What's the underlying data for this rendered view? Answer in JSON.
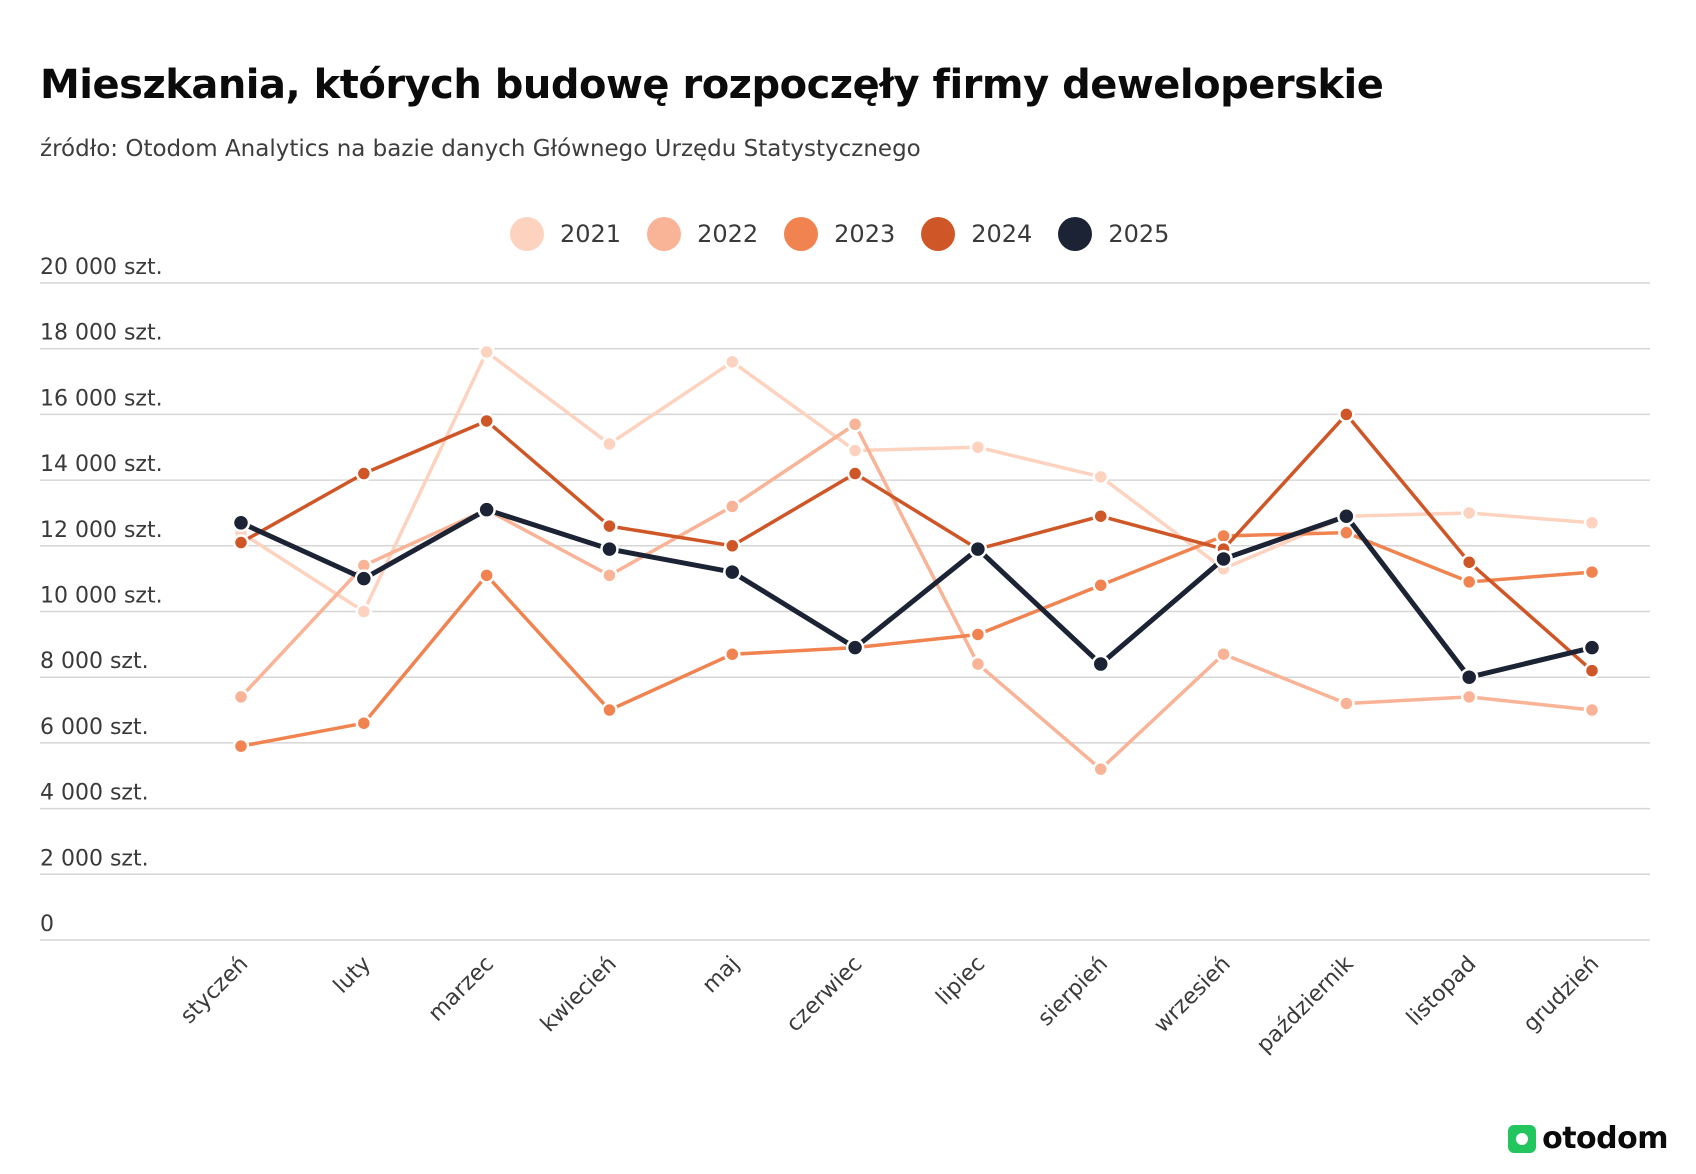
{
  "header": {
    "title": "Mieszkania, których budowę rozpoczęły firmy deweloperskie",
    "subtitle": "źródło: Otodom Analytics na bazie danych Głównego Urzędu Statystycznego"
  },
  "logo": {
    "text": "otodom",
    "icon": "otodom-logo-icon",
    "color": "#22c55e"
  },
  "chart_data": {
    "type": "line",
    "title": "Mieszkania, których budowę rozpoczęły firmy deweloperskie",
    "xlabel": "",
    "ylabel": "",
    "ylim": [
      0,
      20000
    ],
    "grid": true,
    "legend_position": "top-center",
    "y_ticks": [
      {
        "value": 0,
        "label": "0"
      },
      {
        "value": 2000,
        "label": "2 000 szt."
      },
      {
        "value": 4000,
        "label": "4 000 szt."
      },
      {
        "value": 6000,
        "label": "6 000 szt."
      },
      {
        "value": 8000,
        "label": "8 000 szt."
      },
      {
        "value": 10000,
        "label": "10 000 szt."
      },
      {
        "value": 12000,
        "label": "12 000 szt."
      },
      {
        "value": 14000,
        "label": "14 000 szt."
      },
      {
        "value": 16000,
        "label": "16 000 szt."
      },
      {
        "value": 18000,
        "label": "18 000 szt."
      },
      {
        "value": 20000,
        "label": "20 000 szt."
      }
    ],
    "categories": [
      "styczeń",
      "luty",
      "marzec",
      "kwiecień",
      "maj",
      "czerwiec",
      "lipiec",
      "sierpień",
      "wrzesień",
      "październik",
      "listopad",
      "grudzień"
    ],
    "series": [
      {
        "name": "2021",
        "color": "#fdd3c0",
        "values": [
          12400,
          10000,
          17900,
          15100,
          17600,
          14900,
          15000,
          14100,
          11300,
          12900,
          13000,
          12700
        ]
      },
      {
        "name": "2022",
        "color": "#f9b396",
        "values": [
          7400,
          11400,
          13100,
          11100,
          13200,
          15700,
          8400,
          5200,
          8700,
          7200,
          7400,
          7000
        ]
      },
      {
        "name": "2023",
        "color": "#f0834f",
        "values": [
          5900,
          6600,
          11100,
          7000,
          8700,
          8900,
          9300,
          10800,
          12300,
          12400,
          10900,
          11200
        ]
      },
      {
        "name": "2024",
        "color": "#cf5626",
        "values": [
          12100,
          14200,
          15800,
          12600,
          12000,
          14200,
          11900,
          12900,
          11900,
          16000,
          11500,
          8200
        ]
      },
      {
        "name": "2025",
        "color": "#1b2334",
        "values": [
          12700,
          11000,
          13100,
          11900,
          11200,
          8900,
          11900,
          8400,
          11600,
          12900,
          8000,
          8900
        ]
      }
    ]
  }
}
